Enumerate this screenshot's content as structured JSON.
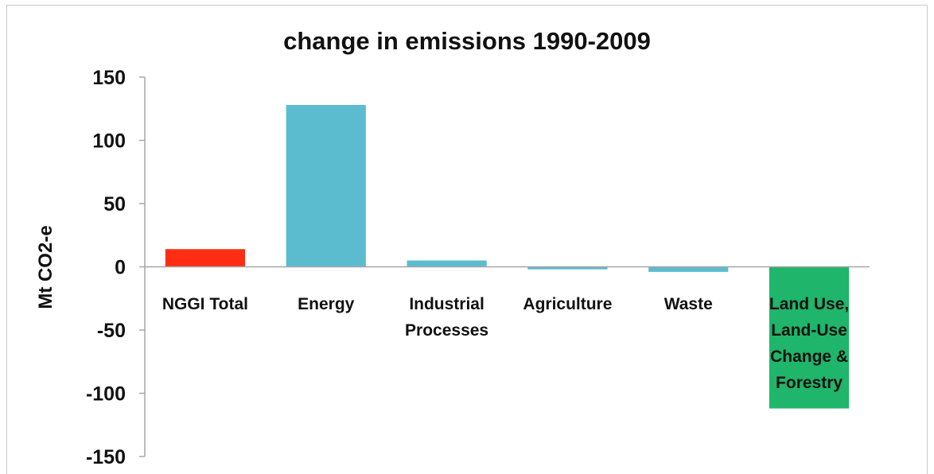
{
  "chart_data": {
    "type": "bar",
    "title": "change in emissions 1990-2009",
    "xlabel": "",
    "ylabel": "Mt CO2-e",
    "ylim": [
      -150,
      150
    ],
    "yticks": [
      150,
      100,
      50,
      0,
      -50,
      -100,
      -150
    ],
    "tick_labels": [
      "150",
      "100",
      "50",
      "0",
      "-50",
      "-100",
      "-150"
    ],
    "categories": [
      "NGGI Total",
      "Energy",
      "Industrial Processes",
      "Agriculture",
      "Waste",
      "Land Use, Land-Use Change & Forestry"
    ],
    "category_lines": [
      [
        "NGGI Total"
      ],
      [
        "Energy"
      ],
      [
        "Industrial",
        "Processes"
      ],
      [
        "Agriculture"
      ],
      [
        "Waste"
      ],
      [
        "Land Use,",
        "Land-Use",
        "Change &",
        "Forestry"
      ]
    ],
    "values": [
      14,
      128,
      5,
      -2,
      -4,
      -112
    ],
    "colors": [
      "#ff2d12",
      "#5bbccf",
      "#5bbccf",
      "#5bbccf",
      "#5bbccf",
      "#1fb56a"
    ],
    "grid": false,
    "legend": "none"
  }
}
